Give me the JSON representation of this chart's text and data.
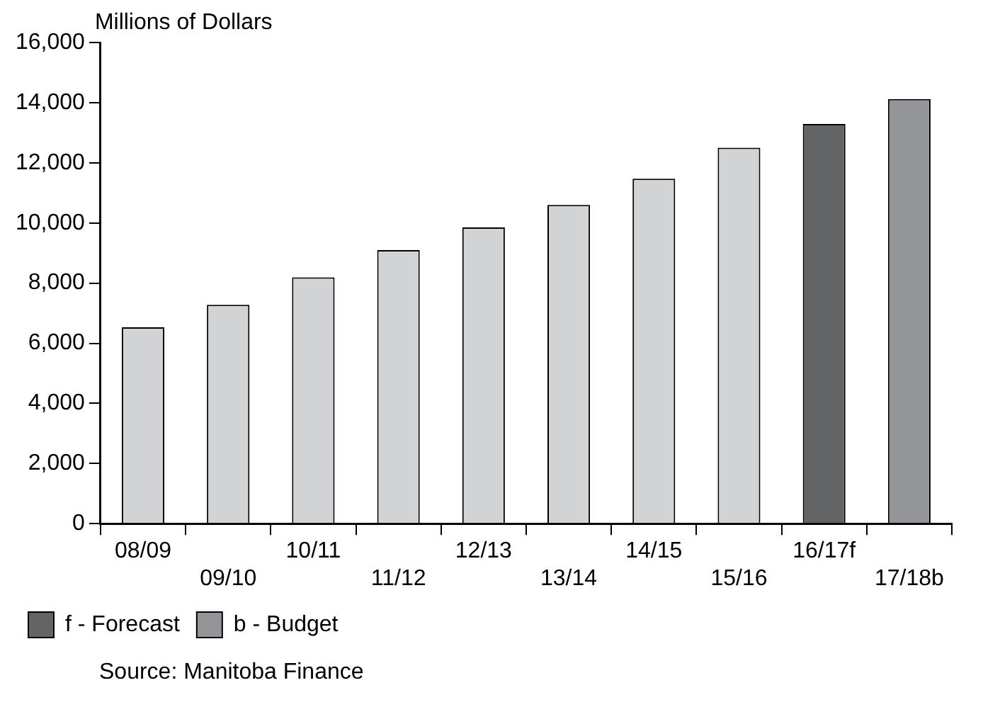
{
  "chart_data": {
    "type": "bar",
    "ylabel": "Millions of Dollars",
    "categories": [
      "08/09",
      "09/10",
      "10/11",
      "11/12",
      "12/13",
      "13/14",
      "14/15",
      "15/16",
      "16/17f",
      "17/18b"
    ],
    "stacked": true,
    "series": [
      {
        "color": "#d2d3d5",
        "values": [
          6530,
          7280,
          8190,
          9100,
          9850,
          10600,
          11470,
          12500,
          null,
          null
        ]
      },
      {
        "name": "f - Forecast",
        "color": "#636466",
        "values": [
          null,
          null,
          null,
          null,
          null,
          null,
          null,
          null,
          13290,
          null
        ]
      },
      {
        "name": "b - Budget",
        "color": "#939598",
        "values": [
          null,
          null,
          null,
          null,
          null,
          null,
          null,
          null,
          null,
          14120
        ]
      }
    ],
    "ylim": [
      0,
      16000
    ],
    "yticks": [
      0,
      {
        "value": 2000,
        "label": "2,000"
      },
      {
        "value": 4000,
        "label": "4,000"
      },
      {
        "value": 6000,
        "label": "6,000"
      },
      {
        "value": 8000,
        "label": "8,000"
      },
      {
        "value": 10000,
        "label": "10,000"
      },
      {
        "value": 12000,
        "label": "12,000"
      },
      {
        "value": 14000,
        "label": "14,000"
      },
      {
        "value": 16000,
        "label": "16,000"
      }
    ],
    "grid": false,
    "legend": "bottom left",
    "annotations": [
      "Source: Manitoba Finance"
    ]
  }
}
